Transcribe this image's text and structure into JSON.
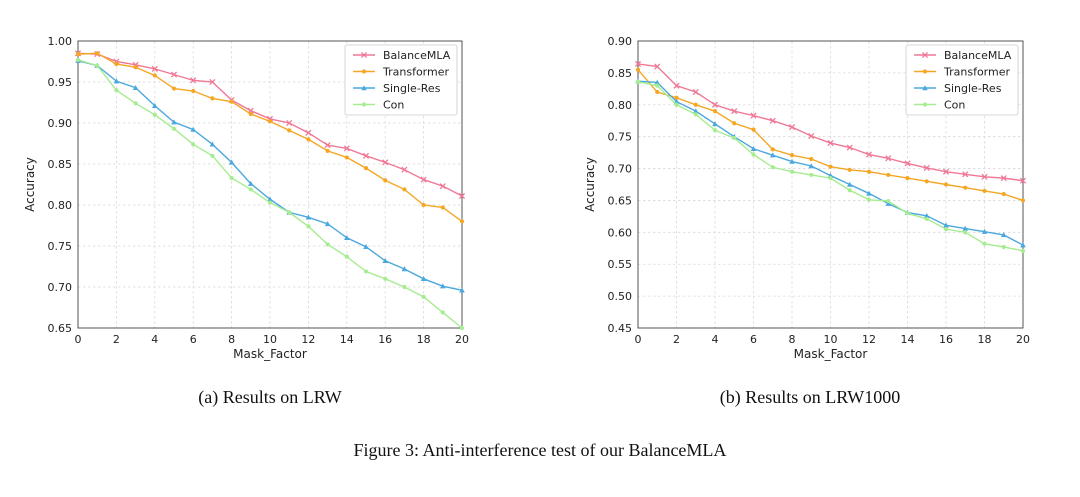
{
  "figure_caption": "Figure 3: Anti-interference test of our BalanceMLA",
  "colors": {
    "BalanceMLA": "#f07895",
    "Transformer": "#f5a623",
    "Single-Res": "#4aa8df",
    "Con": "#a6ec90"
  },
  "chart_data": [
    {
      "type": "line",
      "caption": "(a) Results on LRW",
      "xlabel": "Mask_Factor",
      "ylabel": "Accuracy",
      "xlim": [
        0,
        20
      ],
      "ylim": [
        0.65,
        1.0
      ],
      "xticks": [
        0,
        2,
        4,
        6,
        8,
        10,
        12,
        14,
        16,
        18,
        20
      ],
      "yticks": [
        0.65,
        0.7,
        0.75,
        0.8,
        0.85,
        0.9,
        0.95,
        1.0
      ],
      "ytick_labels": [
        "0.65",
        "0.70",
        "0.75",
        "0.80",
        "0.85",
        "0.90",
        "0.95",
        "1.00"
      ],
      "grid": true,
      "legend": "top-right",
      "x": [
        0,
        1,
        2,
        3,
        4,
        5,
        6,
        7,
        8,
        9,
        10,
        11,
        12,
        13,
        14,
        15,
        16,
        17,
        18,
        19,
        20
      ],
      "series": [
        {
          "name": "BalanceMLA",
          "marker": "x",
          "values": [
            0.985,
            0.984,
            0.975,
            0.971,
            0.966,
            0.959,
            0.952,
            0.95,
            0.928,
            0.915,
            0.905,
            0.9,
            0.888,
            0.873,
            0.869,
            0.86,
            0.852,
            0.843,
            0.831,
            0.823,
            0.811
          ]
        },
        {
          "name": "Transformer",
          "marker": "dot",
          "values": [
            0.984,
            0.985,
            0.972,
            0.968,
            0.958,
            0.942,
            0.939,
            0.93,
            0.926,
            0.911,
            0.902,
            0.891,
            0.88,
            0.866,
            0.858,
            0.845,
            0.83,
            0.819,
            0.8,
            0.797,
            0.78
          ]
        },
        {
          "name": "Single-Res",
          "marker": "triangle",
          "values": [
            0.976,
            0.97,
            0.951,
            0.943,
            0.921,
            0.901,
            0.892,
            0.874,
            0.852,
            0.826,
            0.807,
            0.791,
            0.785,
            0.777,
            0.76,
            0.749,
            0.732,
            0.722,
            0.71,
            0.701,
            0.696
          ]
        },
        {
          "name": "Con",
          "marker": "dot",
          "values": [
            0.977,
            0.97,
            0.94,
            0.924,
            0.91,
            0.893,
            0.874,
            0.86,
            0.833,
            0.819,
            0.803,
            0.791,
            0.774,
            0.752,
            0.737,
            0.719,
            0.71,
            0.7,
            0.688,
            0.669,
            0.65
          ]
        }
      ]
    },
    {
      "type": "line",
      "caption": "(b) Results on LRW1000",
      "xlabel": "Mask_Factor",
      "ylabel": "Accuracy",
      "xlim": [
        0,
        20
      ],
      "ylim": [
        0.45,
        0.9
      ],
      "xticks": [
        0,
        2,
        4,
        6,
        8,
        10,
        12,
        14,
        16,
        18,
        20
      ],
      "yticks": [
        0.45,
        0.5,
        0.55,
        0.6,
        0.65,
        0.7,
        0.75,
        0.8,
        0.85,
        0.9
      ],
      "ytick_labels": [
        "0.45",
        "0.50",
        "0.55",
        "0.60",
        "0.65",
        "0.70",
        "0.75",
        "0.80",
        "0.85",
        "0.90"
      ],
      "grid": true,
      "legend": "top-right",
      "x": [
        0,
        1,
        2,
        3,
        4,
        5,
        6,
        7,
        8,
        9,
        10,
        11,
        12,
        13,
        14,
        15,
        16,
        17,
        18,
        19,
        20
      ],
      "series": [
        {
          "name": "BalanceMLA",
          "marker": "x",
          "values": [
            0.864,
            0.86,
            0.83,
            0.82,
            0.8,
            0.79,
            0.783,
            0.775,
            0.765,
            0.751,
            0.74,
            0.733,
            0.722,
            0.716,
            0.708,
            0.701,
            0.695,
            0.691,
            0.687,
            0.685,
            0.681
          ]
        },
        {
          "name": "Transformer",
          "marker": "dot",
          "values": [
            0.855,
            0.82,
            0.811,
            0.8,
            0.79,
            0.771,
            0.761,
            0.73,
            0.721,
            0.715,
            0.703,
            0.698,
            0.695,
            0.69,
            0.685,
            0.68,
            0.675,
            0.67,
            0.665,
            0.66,
            0.65
          ]
        },
        {
          "name": "Single-Res",
          "marker": "triangle",
          "values": [
            0.837,
            0.835,
            0.805,
            0.79,
            0.77,
            0.75,
            0.731,
            0.721,
            0.711,
            0.704,
            0.689,
            0.675,
            0.661,
            0.645,
            0.631,
            0.626,
            0.611,
            0.606,
            0.601,
            0.596,
            0.58
          ]
        },
        {
          "name": "Con",
          "marker": "dot",
          "values": [
            0.836,
            0.83,
            0.8,
            0.785,
            0.76,
            0.748,
            0.722,
            0.702,
            0.695,
            0.69,
            0.685,
            0.666,
            0.651,
            0.649,
            0.63,
            0.621,
            0.605,
            0.6,
            0.582,
            0.577,
            0.571
          ]
        }
      ]
    }
  ]
}
